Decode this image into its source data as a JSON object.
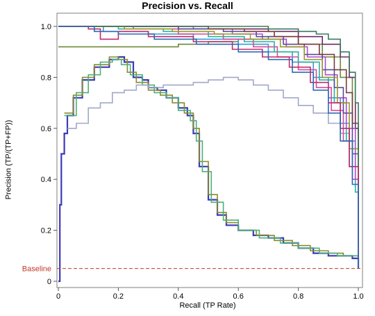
{
  "chart_data": {
    "type": "line",
    "title": "Precision vs. Recall",
    "xlabel": "Recall (TP Rate)",
    "ylabel": "Precision (TP/(TP+FP))",
    "xlim": [
      0,
      1
    ],
    "ylim": [
      0,
      1
    ],
    "x_ticks": [
      "0",
      "0.2",
      "0.4",
      "0.6",
      "0.8",
      "1.0"
    ],
    "y_ticks": [
      "0",
      "0.2",
      "0.4",
      "0.6",
      "0.8",
      "1.0"
    ],
    "grid": false,
    "baseline": {
      "label": "Baseline",
      "value": 0.05,
      "color": "#c0392b"
    },
    "series": [
      {
        "color": "#3a3ab8",
        "points": [
          [
            0,
            0
          ],
          [
            0.005,
            0.3
          ],
          [
            0.01,
            0.5
          ],
          [
            0.02,
            0.58
          ],
          [
            0.03,
            0.65
          ],
          [
            0.05,
            0.72
          ],
          [
            0.08,
            0.79
          ],
          [
            0.12,
            0.84
          ],
          [
            0.17,
            0.87
          ],
          [
            0.2,
            0.88
          ],
          [
            0.22,
            0.86
          ],
          [
            0.25,
            0.8
          ],
          [
            0.28,
            0.79
          ],
          [
            0.3,
            0.76
          ],
          [
            0.33,
            0.75
          ],
          [
            0.36,
            0.72
          ],
          [
            0.4,
            0.68
          ],
          [
            0.43,
            0.65
          ],
          [
            0.45,
            0.58
          ],
          [
            0.47,
            0.45
          ],
          [
            0.5,
            0.32
          ],
          [
            0.53,
            0.26
          ],
          [
            0.56,
            0.22
          ],
          [
            0.6,
            0.2
          ],
          [
            0.65,
            0.18
          ],
          [
            0.7,
            0.17
          ],
          [
            0.75,
            0.15
          ],
          [
            0.8,
            0.13
          ],
          [
            0.85,
            0.11
          ],
          [
            0.9,
            0.1
          ],
          [
            0.95,
            0.1
          ],
          [
            0.98,
            0.09
          ],
          [
            1.0,
            0.05
          ]
        ]
      },
      {
        "color": "#8a8a2a",
        "points": [
          [
            0.02,
            0.66
          ],
          [
            0.05,
            0.73
          ],
          [
            0.08,
            0.8
          ],
          [
            0.12,
            0.85
          ],
          [
            0.17,
            0.88
          ],
          [
            0.2,
            0.87
          ],
          [
            0.23,
            0.82
          ],
          [
            0.26,
            0.78
          ],
          [
            0.3,
            0.75
          ],
          [
            0.34,
            0.73
          ],
          [
            0.38,
            0.7
          ],
          [
            0.42,
            0.66
          ],
          [
            0.45,
            0.6
          ],
          [
            0.47,
            0.47
          ],
          [
            0.5,
            0.34
          ],
          [
            0.53,
            0.27
          ],
          [
            0.56,
            0.23
          ],
          [
            0.6,
            0.2
          ],
          [
            0.66,
            0.18
          ],
          [
            0.72,
            0.16
          ],
          [
            0.78,
            0.14
          ],
          [
            0.84,
            0.12
          ],
          [
            0.9,
            0.11
          ],
          [
            0.95,
            0.1
          ],
          [
            1.0,
            0.06
          ]
        ]
      },
      {
        "color": "#4caf7a",
        "points": [
          [
            0.02,
            0.65
          ],
          [
            0.06,
            0.74
          ],
          [
            0.1,
            0.81
          ],
          [
            0.14,
            0.86
          ],
          [
            0.18,
            0.87
          ],
          [
            0.21,
            0.85
          ],
          [
            0.24,
            0.81
          ],
          [
            0.28,
            0.77
          ],
          [
            0.32,
            0.74
          ],
          [
            0.36,
            0.72
          ],
          [
            0.4,
            0.67
          ],
          [
            0.44,
            0.63
          ],
          [
            0.46,
            0.55
          ],
          [
            0.48,
            0.43
          ],
          [
            0.51,
            0.31
          ],
          [
            0.55,
            0.24
          ],
          [
            0.6,
            0.2
          ],
          [
            0.67,
            0.17
          ],
          [
            0.74,
            0.15
          ],
          [
            0.8,
            0.13
          ],
          [
            0.87,
            0.11
          ],
          [
            0.93,
            0.1
          ],
          [
            1.0,
            0.06
          ]
        ]
      },
      {
        "color": "#a0a8c8",
        "points": [
          [
            0.03,
            0.6
          ],
          [
            0.06,
            0.62
          ],
          [
            0.1,
            0.68
          ],
          [
            0.14,
            0.7
          ],
          [
            0.18,
            0.74
          ],
          [
            0.22,
            0.75
          ],
          [
            0.26,
            0.77
          ],
          [
            0.3,
            0.76
          ],
          [
            0.35,
            0.77
          ],
          [
            0.4,
            0.77
          ],
          [
            0.45,
            0.78
          ],
          [
            0.5,
            0.79
          ],
          [
            0.55,
            0.8
          ],
          [
            0.6,
            0.79
          ],
          [
            0.65,
            0.77
          ],
          [
            0.7,
            0.75
          ],
          [
            0.75,
            0.72
          ],
          [
            0.8,
            0.69
          ],
          [
            0.85,
            0.66
          ],
          [
            0.9,
            0.62
          ],
          [
            0.94,
            0.58
          ],
          [
            0.97,
            0.55
          ]
        ]
      },
      {
        "color": "#6a8a3a",
        "points": [
          [
            0.0,
            0.92
          ],
          [
            0.1,
            0.92
          ],
          [
            0.2,
            0.92
          ],
          [
            0.3,
            0.92
          ],
          [
            0.4,
            0.93
          ],
          [
            0.5,
            0.94
          ],
          [
            0.6,
            0.95
          ],
          [
            0.7,
            0.96
          ],
          [
            0.8,
            0.93
          ],
          [
            0.88,
            0.88
          ],
          [
            0.94,
            0.8
          ],
          [
            0.98,
            0.6
          ],
          [
            1.0,
            0.1
          ]
        ]
      },
      {
        "color": "#6a2a6a",
        "points": [
          [
            0.0,
            1.0
          ],
          [
            0.2,
            1.0
          ],
          [
            0.4,
            0.99
          ],
          [
            0.6,
            0.99
          ],
          [
            0.7,
            0.98
          ],
          [
            0.8,
            0.96
          ],
          [
            0.88,
            0.93
          ],
          [
            0.94,
            0.88
          ],
          [
            0.97,
            0.8
          ],
          [
            0.99,
            0.6
          ],
          [
            1.0,
            0.08
          ]
        ]
      },
      {
        "color": "#3a9ad8",
        "points": [
          [
            0.0,
            1.0
          ],
          [
            0.15,
            0.98
          ],
          [
            0.3,
            0.97
          ],
          [
            0.45,
            0.95
          ],
          [
            0.6,
            0.93
          ],
          [
            0.7,
            0.9
          ],
          [
            0.78,
            0.86
          ],
          [
            0.85,
            0.8
          ],
          [
            0.9,
            0.72
          ],
          [
            0.94,
            0.62
          ],
          [
            0.97,
            0.45
          ],
          [
            1.0,
            0.07
          ]
        ]
      },
      {
        "color": "#d84a9a",
        "points": [
          [
            0.0,
            1.0
          ],
          [
            0.1,
            1.0
          ],
          [
            0.25,
            0.99
          ],
          [
            0.4,
            0.97
          ],
          [
            0.55,
            0.95
          ],
          [
            0.65,
            0.92
          ],
          [
            0.73,
            0.88
          ],
          [
            0.8,
            0.83
          ],
          [
            0.86,
            0.76
          ],
          [
            0.91,
            0.67
          ],
          [
            0.95,
            0.55
          ],
          [
            0.98,
            0.4
          ],
          [
            1.0,
            0.06
          ]
        ]
      },
      {
        "color": "#2ab0a0",
        "points": [
          [
            0.0,
            1.0
          ],
          [
            0.2,
            0.99
          ],
          [
            0.35,
            0.98
          ],
          [
            0.5,
            0.96
          ],
          [
            0.62,
            0.94
          ],
          [
            0.72,
            0.9
          ],
          [
            0.8,
            0.86
          ],
          [
            0.87,
            0.79
          ],
          [
            0.92,
            0.7
          ],
          [
            0.96,
            0.55
          ],
          [
            0.99,
            0.35
          ],
          [
            1.0,
            0.07
          ]
        ]
      },
      {
        "color": "#b04ad8",
        "points": [
          [
            0.0,
            1.0
          ],
          [
            0.3,
            1.0
          ],
          [
            0.45,
            0.99
          ],
          [
            0.58,
            0.97
          ],
          [
            0.68,
            0.95
          ],
          [
            0.76,
            0.92
          ],
          [
            0.83,
            0.88
          ],
          [
            0.89,
            0.81
          ],
          [
            0.93,
            0.72
          ],
          [
            0.96,
            0.6
          ],
          [
            0.99,
            0.4
          ],
          [
            1.0,
            0.06
          ]
        ]
      },
      {
        "color": "#5a4a9a",
        "points": [
          [
            0.0,
            1.0
          ],
          [
            0.25,
            1.0
          ],
          [
            0.4,
            0.99
          ],
          [
            0.55,
            0.98
          ],
          [
            0.66,
            0.96
          ],
          [
            0.75,
            0.93
          ],
          [
            0.82,
            0.89
          ],
          [
            0.88,
            0.83
          ],
          [
            0.92,
            0.76
          ],
          [
            0.95,
            0.66
          ],
          [
            0.98,
            0.5
          ],
          [
            1.0,
            0.07
          ]
        ]
      },
      {
        "color": "#7a3a3a",
        "points": [
          [
            0.0,
            1.0
          ],
          [
            0.35,
            1.0
          ],
          [
            0.5,
            0.99
          ],
          [
            0.62,
            0.98
          ],
          [
            0.72,
            0.96
          ],
          [
            0.8,
            0.93
          ],
          [
            0.87,
            0.89
          ],
          [
            0.92,
            0.83
          ],
          [
            0.96,
            0.74
          ],
          [
            0.98,
            0.62
          ],
          [
            1.0,
            0.08
          ]
        ]
      },
      {
        "color": "#9a9a2a",
        "points": [
          [
            0.0,
            1.0
          ],
          [
            0.22,
            0.99
          ],
          [
            0.38,
            0.98
          ],
          [
            0.52,
            0.97
          ],
          [
            0.64,
            0.95
          ],
          [
            0.74,
            0.92
          ],
          [
            0.82,
            0.87
          ],
          [
            0.88,
            0.8
          ],
          [
            0.93,
            0.7
          ],
          [
            0.97,
            0.52
          ],
          [
            1.0,
            0.06
          ]
        ]
      },
      {
        "color": "#3a7a5a",
        "points": [
          [
            0.0,
            1.0
          ],
          [
            0.3,
            1.0
          ],
          [
            0.5,
            1.0
          ],
          [
            0.7,
            0.99
          ],
          [
            0.8,
            0.98
          ],
          [
            0.86,
            0.97
          ],
          [
            0.9,
            0.95
          ],
          [
            0.94,
            0.9
          ],
          [
            0.97,
            0.82
          ],
          [
            0.99,
            0.7
          ],
          [
            1.0,
            0.1
          ]
        ]
      },
      {
        "color": "#c02a6a",
        "points": [
          [
            0.0,
            1.0
          ],
          [
            0.1,
            0.99
          ],
          [
            0.14,
            0.95
          ],
          [
            0.2,
            0.98
          ],
          [
            0.3,
            0.96
          ],
          [
            0.45,
            0.94
          ],
          [
            0.58,
            0.91
          ],
          [
            0.68,
            0.88
          ],
          [
            0.77,
            0.84
          ],
          [
            0.84,
            0.78
          ],
          [
            0.9,
            0.7
          ],
          [
            0.94,
            0.6
          ],
          [
            0.97,
            0.45
          ],
          [
            1.0,
            0.06
          ]
        ]
      },
      {
        "color": "#2a6ab8",
        "points": [
          [
            0.0,
            1.0
          ],
          [
            0.12,
            0.98
          ],
          [
            0.2,
            0.97
          ],
          [
            0.32,
            0.95
          ],
          [
            0.46,
            0.93
          ],
          [
            0.6,
            0.9
          ],
          [
            0.7,
            0.87
          ],
          [
            0.78,
            0.82
          ],
          [
            0.85,
            0.75
          ],
          [
            0.9,
            0.66
          ],
          [
            0.94,
            0.55
          ],
          [
            0.98,
            0.38
          ],
          [
            1.0,
            0.05
          ]
        ]
      }
    ]
  }
}
